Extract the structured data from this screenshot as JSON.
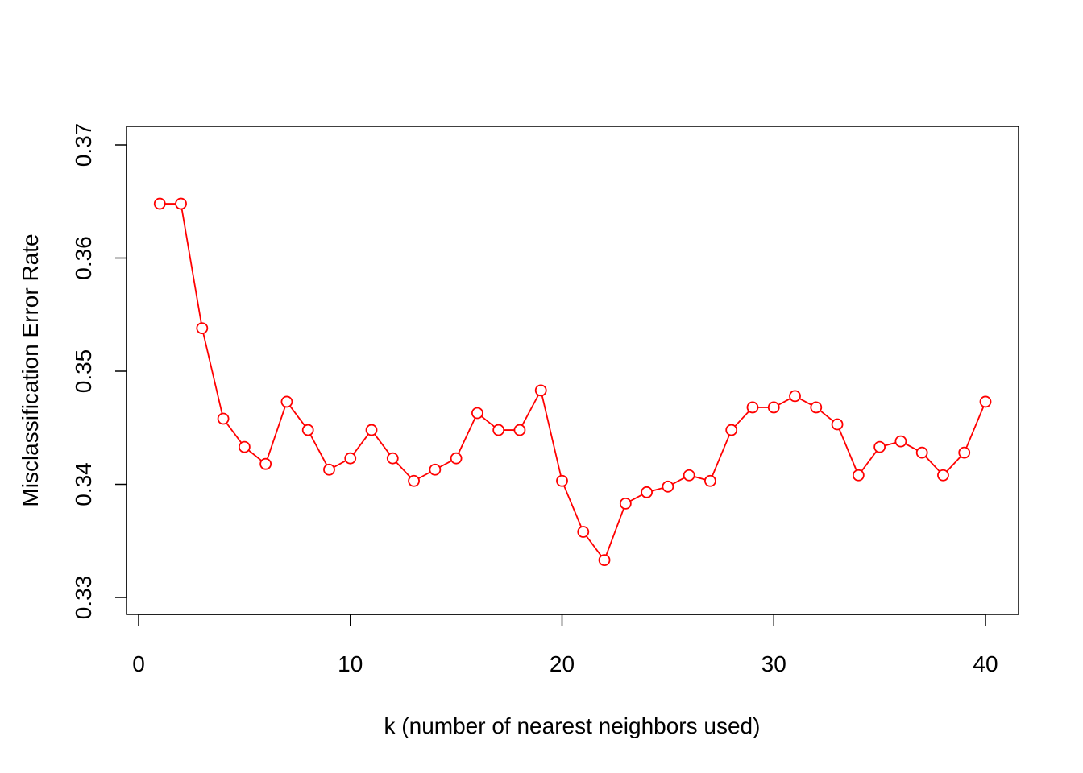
{
  "chart_data": {
    "type": "line",
    "markers": "open-circle",
    "line_color": "#ff0000",
    "title": "",
    "xlabel": "k (number of nearest neighbors used)",
    "ylabel": "Misclassification Error Rate",
    "xlim": [
      0,
      40
    ],
    "ylim": [
      0.33,
      0.37
    ],
    "x_ticks": [
      0,
      10,
      20,
      30,
      40
    ],
    "y_ticks": [
      0.33,
      0.34,
      0.35,
      0.36,
      0.37
    ],
    "y_tick_labels": [
      "0.33",
      "0.34",
      "0.35",
      "0.36",
      "0.37"
    ],
    "grid": false,
    "legend": "none",
    "series": [
      {
        "x": [
          1,
          2,
          3,
          4,
          5,
          6,
          7,
          8,
          9,
          10,
          11,
          12,
          13,
          14,
          15,
          16,
          17,
          18,
          19,
          20,
          21,
          22,
          23,
          24,
          25,
          26,
          27,
          28,
          29,
          30,
          31,
          32,
          33,
          34,
          35,
          36,
          37,
          38,
          39,
          40
        ],
        "values": [
          0.3648,
          0.3648,
          0.3538,
          0.3458,
          0.3433,
          0.3418,
          0.3473,
          0.3448,
          0.3413,
          0.3423,
          0.3448,
          0.3423,
          0.3403,
          0.3413,
          0.3423,
          0.3463,
          0.3448,
          0.3448,
          0.3483,
          0.3403,
          0.3358,
          0.3333,
          0.3383,
          0.3393,
          0.3398,
          0.3408,
          0.3403,
          0.3448,
          0.3468,
          0.3468,
          0.3478,
          0.3468,
          0.3453,
          0.3408,
          0.3433,
          0.3438,
          0.3428,
          0.3408,
          0.3428,
          0.3473
        ]
      }
    ]
  }
}
